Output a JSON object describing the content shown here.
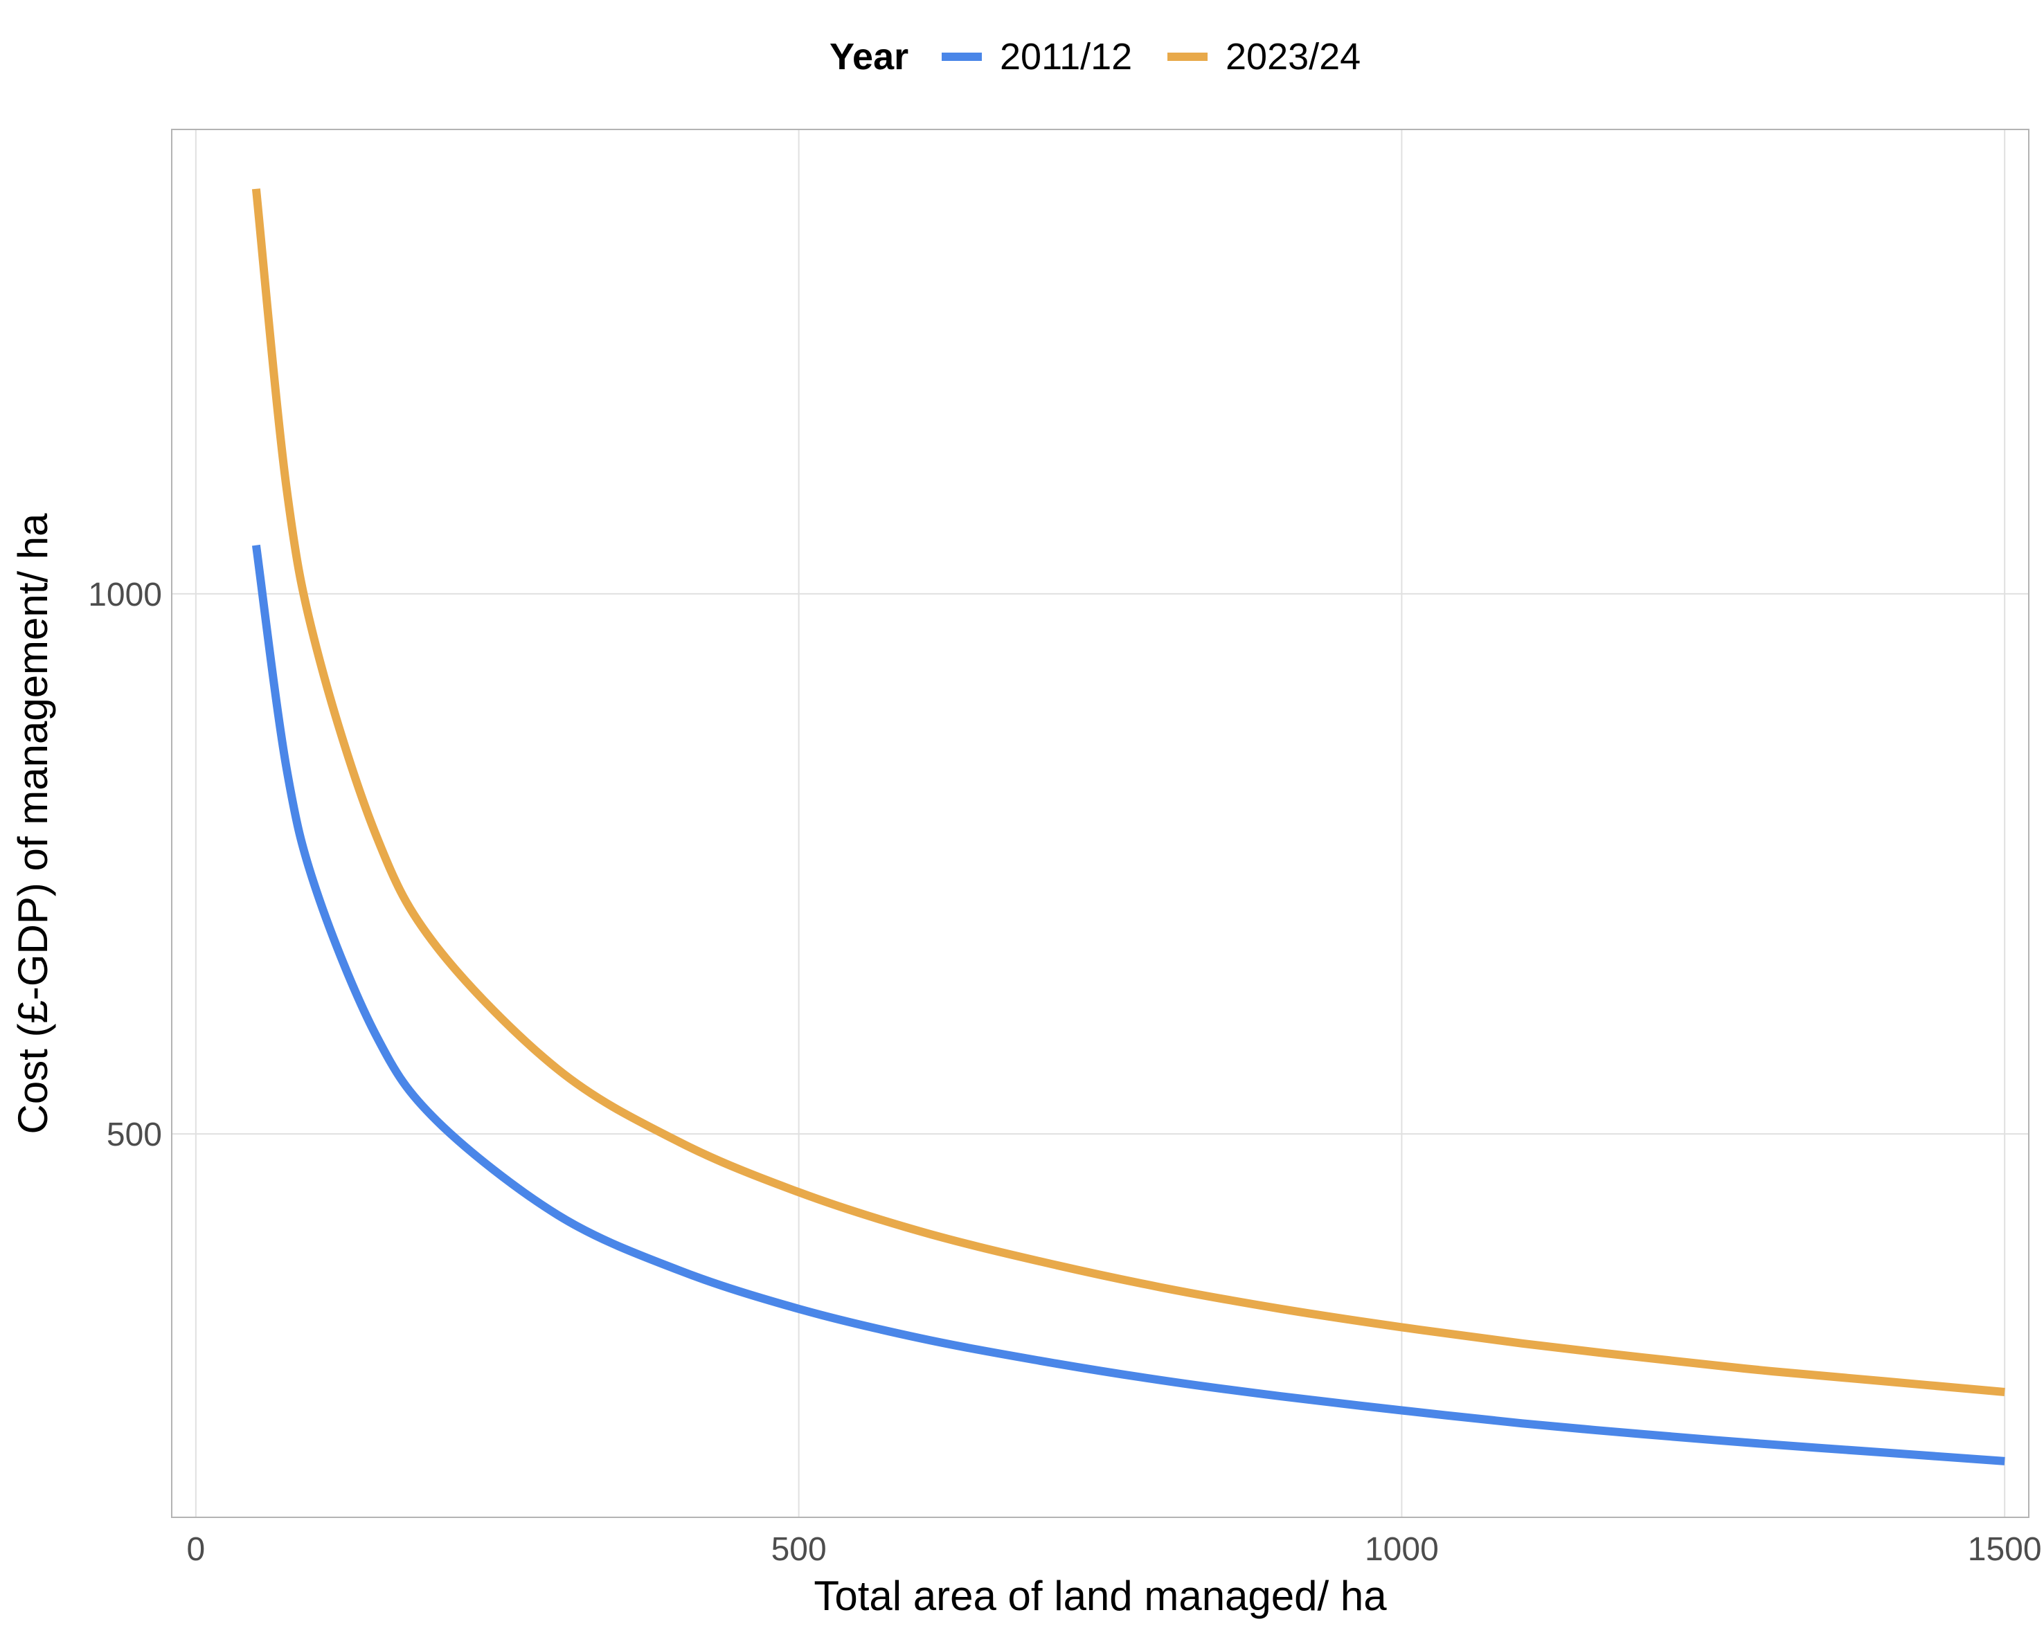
{
  "chart_data": {
    "type": "line",
    "title": "",
    "xlabel": "Total area of land managed/ ha",
    "ylabel": "Cost (£-GDP) of management/ ha",
    "xlim": [
      -20,
      1520
    ],
    "ylim": [
      145,
      1430
    ],
    "x_ticks": [
      0,
      500,
      1000,
      1500
    ],
    "x_tick_labels": [
      "0",
      "500",
      "1000",
      "1500"
    ],
    "y_ticks": [
      500,
      1000
    ],
    "y_tick_labels": [
      "500",
      "1000"
    ],
    "grid": true,
    "legend": {
      "title": "Year",
      "position": "top"
    },
    "series": [
      {
        "name": "2011/12",
        "color": "#4a86e8",
        "x": [
          50,
          75,
          100,
          150,
          200,
          300,
          400,
          500,
          600,
          700,
          800,
          900,
          1000,
          1100,
          1200,
          1300,
          1400,
          1500
        ],
        "y": [
          1045,
          840,
          725,
          590,
          512,
          425,
          374,
          338,
          311,
          290,
          272,
          257,
          244,
          232,
          222,
          213,
          205,
          197
        ]
      },
      {
        "name": "2023/24",
        "color": "#e8a94a",
        "x": [
          50,
          75,
          100,
          150,
          200,
          300,
          400,
          500,
          600,
          700,
          800,
          900,
          1000,
          1100,
          1200,
          1300,
          1400,
          1500
        ],
        "y": [
          1375,
          1100,
          950,
          775,
          673,
          560,
          493,
          446,
          410,
          382,
          358,
          338,
          321,
          306,
          293,
          281,
          271,
          261
        ]
      }
    ]
  }
}
